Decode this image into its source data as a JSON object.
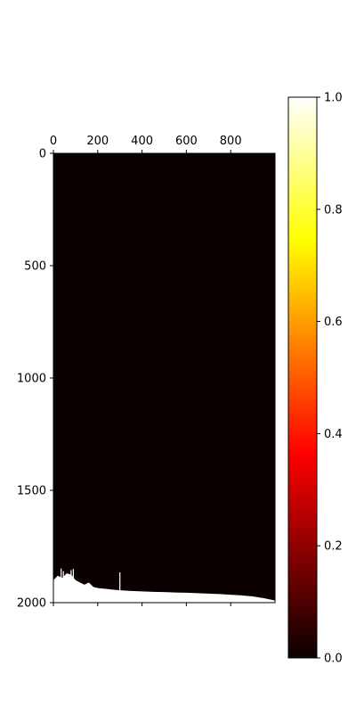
{
  "chart_data": {
    "type": "heatmap",
    "title": "",
    "xlabel": "",
    "ylabel": "",
    "colormap": "hot",
    "background_color": "#0a0000",
    "fill_color": "#ffffff",
    "x_axis": {
      "position": "top",
      "lim": [
        0,
        1000
      ],
      "ticks": [
        0,
        200,
        400,
        600,
        800
      ],
      "tick_labels": [
        "0",
        "200",
        "400",
        "600",
        "800"
      ]
    },
    "y_axis": {
      "inverted": true,
      "lim": [
        0,
        2000
      ],
      "ticks": [
        0,
        500,
        1000,
        1500,
        2000
      ],
      "tick_labels": [
        "0",
        "500",
        "1000",
        "1500",
        "2000"
      ]
    },
    "colorbar": {
      "orientation": "vertical",
      "lim": [
        0.0,
        1.0
      ],
      "ticks": [
        0.0,
        0.2,
        0.4,
        0.6,
        0.8,
        1.0
      ],
      "tick_labels": [
        "0.0",
        "0.2",
        "0.4",
        "0.6",
        "0.8",
        "1.0"
      ]
    },
    "boundary": {
      "description_unit": "column index vs row index where value switches from 0 to 1",
      "x": [
        0,
        20,
        40,
        60,
        80,
        100,
        120,
        140,
        160,
        180,
        200,
        250,
        300,
        350,
        400,
        450,
        500,
        550,
        600,
        650,
        700,
        750,
        800,
        850,
        900,
        950,
        999
      ],
      "y": [
        1900,
        1880,
        1890,
        1870,
        1875,
        1900,
        1910,
        1920,
        1910,
        1930,
        1935,
        1940,
        1945,
        1948,
        1950,
        1952,
        1953,
        1955,
        1956,
        1958,
        1960,
        1962,
        1965,
        1968,
        1972,
        1980,
        1990
      ]
    },
    "spikes": [
      {
        "x": 35,
        "y": 1848
      },
      {
        "x": 45,
        "y": 1860
      },
      {
        "x": 60,
        "y": 1870
      },
      {
        "x": 80,
        "y": 1855
      },
      {
        "x": 90,
        "y": 1850
      },
      {
        "x": 300,
        "y": 1865
      }
    ]
  }
}
